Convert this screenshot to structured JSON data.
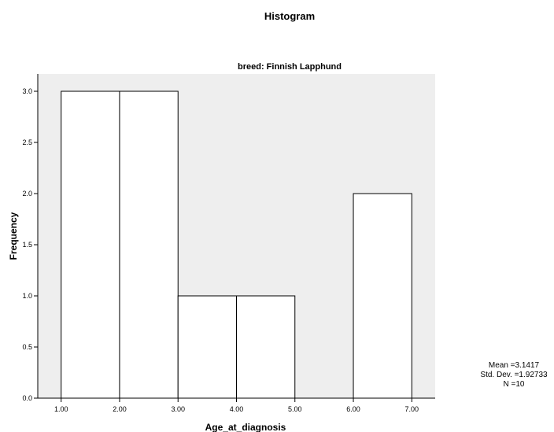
{
  "chart_data": {
    "type": "bar",
    "title": "Histogram",
    "subtitle": "breed: Finnish Lapphund",
    "xlabel": "Age_at_diagnosis",
    "ylabel": "Frequency",
    "x_ticks": [
      "1.00",
      "2.00",
      "3.00",
      "4.00",
      "5.00",
      "6.00",
      "7.00"
    ],
    "y_ticks": [
      "0.0",
      "0.5",
      "1.0",
      "1.5",
      "2.0",
      "2.5",
      "3.0"
    ],
    "xlim": [
      0.6,
      7.4
    ],
    "ylim": [
      0,
      3.0
    ],
    "bins": [
      {
        "start": 1,
        "end": 2,
        "count": 3
      },
      {
        "start": 2,
        "end": 3,
        "count": 3
      },
      {
        "start": 3,
        "end": 4,
        "count": 1
      },
      {
        "start": 4,
        "end": 5,
        "count": 1
      },
      {
        "start": 5,
        "end": 6,
        "count": 0
      },
      {
        "start": 6,
        "end": 7,
        "count": 2
      }
    ],
    "grid": false,
    "colors": {
      "plot_background": "#eeeeee",
      "bar_fill": "#ffffff",
      "bar_stroke": "#000000"
    },
    "stats": {
      "mean": "Mean =3.1417",
      "std_dev": "Std. Dev. =1.92733",
      "n": "N =10"
    }
  }
}
